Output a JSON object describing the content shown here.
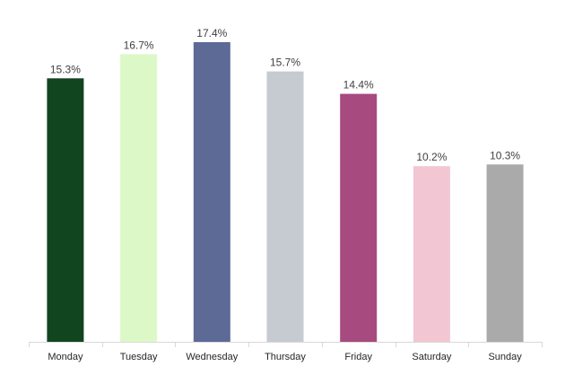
{
  "chart_data": {
    "type": "bar",
    "categories": [
      "Monday",
      "Tuesday",
      "Wednesday",
      "Thursday",
      "Friday",
      "Saturday",
      "Sunday"
    ],
    "values": [
      15.3,
      16.7,
      17.4,
      15.7,
      14.4,
      10.2,
      10.3
    ],
    "value_labels": [
      "15.3%",
      "16.7%",
      "17.4%",
      "15.7%",
      "14.4%",
      "10.2%",
      "10.3%"
    ],
    "colors": [
      "#11451f",
      "#dcf8c6",
      "#5d6a96",
      "#c6cad1",
      "#a64a80",
      "#f2c6d3",
      "#aaaaaa"
    ],
    "title": "",
    "xlabel": "",
    "ylabel": "",
    "ylim": [
      0,
      17.4
    ],
    "grid": false,
    "legend": "none"
  }
}
